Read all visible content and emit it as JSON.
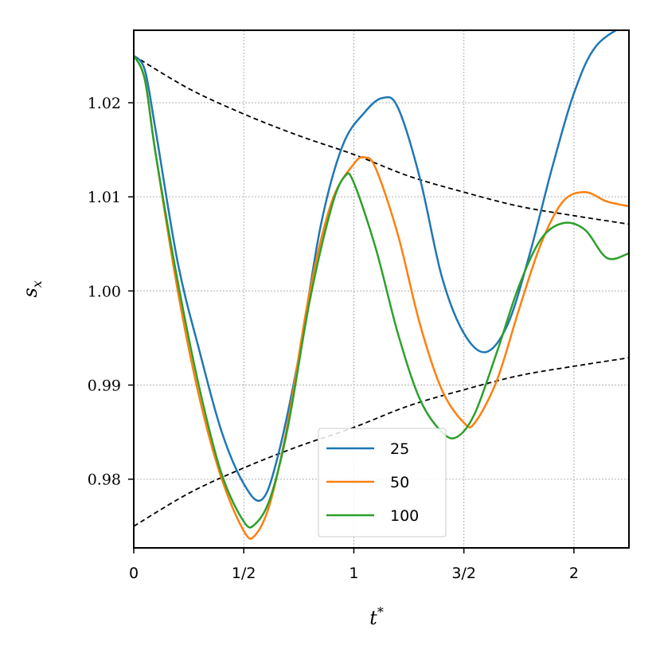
{
  "chart_data": {
    "type": "line",
    "xlabel": "t",
    "xlabel_superscript": "*",
    "ylabel": "s",
    "ylabel_subscript": "x",
    "xlim": [
      0,
      2.25
    ],
    "ylim": [
      0.9727,
      1.0277
    ],
    "xticks": [
      {
        "value": 0,
        "label": "0"
      },
      {
        "value": 0.5,
        "label": "1/2"
      },
      {
        "value": 1,
        "label": "1"
      },
      {
        "value": 1.5,
        "label": "3/2"
      },
      {
        "value": 2,
        "label": "2"
      }
    ],
    "yticks": [
      {
        "value": 0.98,
        "label": "0.98"
      },
      {
        "value": 0.99,
        "label": "0.99"
      },
      {
        "value": 1.0,
        "label": "1.00"
      },
      {
        "value": 1.01,
        "label": "1.01"
      },
      {
        "value": 1.02,
        "label": "1.02"
      }
    ],
    "grid": true,
    "legend_position": "lower center",
    "series": [
      {
        "name": "25",
        "color": "#1f77b4",
        "points": [
          [
            0,
            1.025
          ],
          [
            0.05,
            1.0235
          ],
          [
            0.1,
            1.017
          ],
          [
            0.2,
            1.003
          ],
          [
            0.3,
            0.9935
          ],
          [
            0.4,
            0.985
          ],
          [
            0.5,
            0.9795
          ],
          [
            0.58,
            0.9778
          ],
          [
            0.65,
            0.982
          ],
          [
            0.75,
            0.993
          ],
          [
            0.85,
            1.007
          ],
          [
            0.95,
            1.0155
          ],
          [
            1.05,
            1.019
          ],
          [
            1.13,
            1.0205
          ],
          [
            1.2,
            1.0195
          ],
          [
            1.3,
            1.012
          ],
          [
            1.4,
            1.0015
          ],
          [
            1.5,
            0.9955
          ],
          [
            1.6,
            0.9935
          ],
          [
            1.7,
            0.9965
          ],
          [
            1.8,
            1.004
          ],
          [
            1.9,
            1.013
          ],
          [
            2.0,
            1.021
          ],
          [
            2.1,
            1.026
          ],
          [
            2.25,
            1.0285
          ]
        ]
      },
      {
        "name": "50",
        "color": "#ff7f0e",
        "points": [
          [
            0,
            1.025
          ],
          [
            0.05,
            1.0225
          ],
          [
            0.1,
            1.0145
          ],
          [
            0.2,
            1.0
          ],
          [
            0.3,
            0.9885
          ],
          [
            0.4,
            0.98
          ],
          [
            0.5,
            0.9745
          ],
          [
            0.55,
            0.974
          ],
          [
            0.62,
            0.9775
          ],
          [
            0.7,
            0.986
          ],
          [
            0.8,
            1.0
          ],
          [
            0.9,
            1.0095
          ],
          [
            1.0,
            1.0135
          ],
          [
            1.05,
            1.0142
          ],
          [
            1.1,
            1.013
          ],
          [
            1.2,
            1.006
          ],
          [
            1.3,
            0.9965
          ],
          [
            1.4,
            0.9895
          ],
          [
            1.5,
            0.986
          ],
          [
            1.55,
            0.986
          ],
          [
            1.65,
            0.9905
          ],
          [
            1.75,
            0.998
          ],
          [
            1.85,
            1.005
          ],
          [
            1.95,
            1.0095
          ],
          [
            2.05,
            1.0105
          ],
          [
            2.15,
            1.0095
          ],
          [
            2.25,
            1.009
          ]
        ]
      },
      {
        "name": "100",
        "color": "#2ca02c",
        "points": [
          [
            0,
            1.025
          ],
          [
            0.05,
            1.0225
          ],
          [
            0.1,
            1.0145
          ],
          [
            0.2,
            1.001
          ],
          [
            0.3,
            0.9895
          ],
          [
            0.4,
            0.9805
          ],
          [
            0.5,
            0.9755
          ],
          [
            0.55,
            0.9752
          ],
          [
            0.62,
            0.978
          ],
          [
            0.7,
            0.9855
          ],
          [
            0.8,
            0.999
          ],
          [
            0.9,
            1.009
          ],
          [
            0.96,
            1.0122
          ],
          [
            1.0,
            1.0115
          ],
          [
            1.1,
            1.0045
          ],
          [
            1.2,
            0.9955
          ],
          [
            1.3,
            0.9885
          ],
          [
            1.4,
            0.985
          ],
          [
            1.47,
            0.9845
          ],
          [
            1.55,
            0.987
          ],
          [
            1.65,
            0.9935
          ],
          [
            1.75,
            1.0005
          ],
          [
            1.85,
            1.0055
          ],
          [
            1.95,
            1.0072
          ],
          [
            2.05,
            1.0065
          ],
          [
            2.15,
            1.0035
          ],
          [
            2.25,
            1.004
          ]
        ]
      }
    ],
    "envelopes": [
      {
        "name": "",
        "style": "dashed",
        "color": "#000000",
        "points": [
          [
            0,
            1.025
          ],
          [
            0.25,
            1.0215
          ],
          [
            0.5,
            1.0188
          ],
          [
            0.75,
            1.0165
          ],
          [
            1.0,
            1.0145
          ],
          [
            1.25,
            1.0122
          ],
          [
            1.5,
            1.0105
          ],
          [
            1.75,
            1.009
          ],
          [
            2.0,
            1.008
          ],
          [
            2.25,
            1.0071
          ]
        ]
      },
      {
        "name": "",
        "style": "dashed",
        "color": "#000000",
        "points": [
          [
            0,
            0.975
          ],
          [
            0.25,
            0.9785
          ],
          [
            0.5,
            0.9812
          ],
          [
            0.75,
            0.9835
          ],
          [
            1.0,
            0.9855
          ],
          [
            1.25,
            0.9878
          ],
          [
            1.5,
            0.9895
          ],
          [
            1.75,
            0.991
          ],
          [
            2.0,
            0.992
          ],
          [
            2.25,
            0.9929
          ]
        ]
      }
    ]
  }
}
